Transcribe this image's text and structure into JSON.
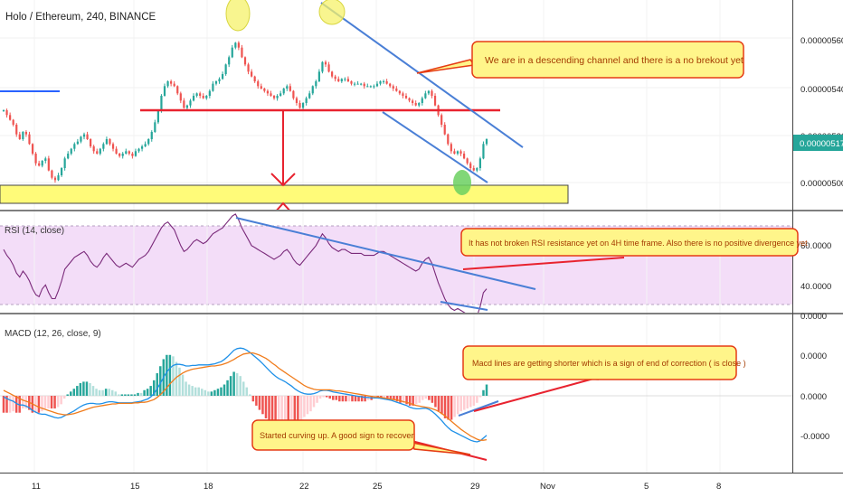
{
  "title": "Holo / Ethereum, 240, BINANCE",
  "colors": {
    "up": "#26a69a",
    "down": "#ef5350",
    "trendline": "#4a7fd6",
    "red_line": "#e8232f",
    "highlight": "#fffb79",
    "rsi": "#7a2a7a",
    "macd": "#1e90e8",
    "signal": "#f07c1c",
    "note_bg": "#fff58a",
    "note_border": "#e53c14"
  },
  "price_panel": {
    "current_price_label": "0.00000517",
    "y_ticks": [
      "0.00000560",
      "0.00000540",
      "0.00000520",
      "0.00000500"
    ],
    "annotation": "We are in a descending channel and there is a no brekout yet"
  },
  "rsi_panel": {
    "label": "RSI (14, close)",
    "y_ticks": [
      "60.0000",
      "40.0000"
    ],
    "annotation": "It has not broken RSI resistance yet on 4H time frame. Also there is no positive divergence yet"
  },
  "macd_panel": {
    "label": "MACD (12, 26, close, 9)",
    "y_ticks": [
      "0.0000",
      "0.0000",
      "0.0000",
      "-0.0000"
    ],
    "annotation_top": "Macd lines are getting shorter which is a sign of end of correction ( is close )",
    "annotation_bottom": "Started curving up. A good sign to recover"
  },
  "x_axis": {
    "ticks": [
      "11",
      "15",
      "18",
      "22",
      "25",
      "29",
      "Nov",
      "5",
      "8"
    ]
  },
  "chart_data": [
    {
      "type": "candlestick",
      "title": "Holo / Ethereum, 240, BINANCE",
      "y_range": [
        4.94e-06,
        5.68e-06
      ],
      "key_level": 5.3e-06,
      "support_zone": [
        4.96e-06,
        5e-06
      ],
      "last_price": 5.17e-06,
      "prices": [
        5.3e-06,
        5.28e-06,
        5.26e-06,
        5.24e-06,
        5.2e-06,
        5.18e-06,
        5.21e-06,
        5.2e-06,
        5.16e-06,
        5.12e-06,
        5.08e-06,
        5.07e-06,
        5.09e-06,
        5.1e-06,
        5.05e-06,
        5.02e-06,
        5.01e-06,
        5.03e-06,
        5.06e-06,
        5.1e-06,
        5.12e-06,
        5.14e-06,
        5.16e-06,
        5.17e-06,
        5.19e-06,
        5.2e-06,
        5.18e-06,
        5.15e-06,
        5.13e-06,
        5.12e-06,
        5.14e-06,
        5.16e-06,
        5.18e-06,
        5.16e-06,
        5.14e-06,
        5.12e-06,
        5.11e-06,
        5.12e-06,
        5.13e-06,
        5.12e-06,
        5.11e-06,
        5.13e-06,
        5.14e-06,
        5.15e-06,
        5.16e-06,
        5.18e-06,
        5.21e-06,
        5.25e-06,
        5.3e-06,
        5.36e-06,
        5.4e-06,
        5.42e-06,
        5.41e-06,
        5.4e-06,
        5.37e-06,
        5.34e-06,
        5.31e-06,
        5.32e-06,
        5.34e-06,
        5.36e-06,
        5.37e-06,
        5.36e-06,
        5.35e-06,
        5.36e-06,
        5.38e-06,
        5.41e-06,
        5.42e-06,
        5.43e-06,
        5.45e-06,
        5.49e-06,
        5.52e-06,
        5.56e-06,
        5.58e-06,
        5.56e-06,
        5.52e-06,
        5.49e-06,
        5.46e-06,
        5.44e-06,
        5.42e-06,
        5.4e-06,
        5.39e-06,
        5.38e-06,
        5.37e-06,
        5.36e-06,
        5.35e-06,
        5.36e-06,
        5.37e-06,
        5.39e-06,
        5.4e-06,
        5.38e-06,
        5.35e-06,
        5.33e-06,
        5.31e-06,
        5.33e-06,
        5.35e-06,
        5.37e-06,
        5.4e-06,
        5.42e-06,
        5.46e-06,
        5.5e-06,
        5.49e-06,
        5.46e-06,
        5.44e-06,
        5.43e-06,
        5.42e-06,
        5.43e-06,
        5.43e-06,
        5.42e-06,
        5.41e-06,
        5.41e-06,
        5.41e-06,
        5.41e-06,
        5.4e-06,
        5.4e-06,
        5.4e-06,
        5.4e-06,
        5.41e-06,
        5.42e-06,
        5.42e-06,
        5.41e-06,
        5.4e-06,
        5.39e-06,
        5.38e-06,
        5.37e-06,
        5.36e-06,
        5.35e-06,
        5.34e-06,
        5.33e-06,
        5.32e-06,
        5.33e-06,
        5.35e-06,
        5.37e-06,
        5.38e-06,
        5.36e-06,
        5.32e-06,
        5.28e-06,
        5.24e-06,
        5.2e-06,
        5.16e-06,
        5.13e-06,
        5.12e-06,
        5.13e-06,
        5.12e-06,
        5.1e-06,
        5.08e-06,
        5.06e-06,
        5.05e-06,
        5.06e-06,
        5.1e-06,
        5.16e-06,
        5.18e-06
      ]
    },
    {
      "type": "line",
      "title": "RSI (14, close)",
      "y_range": [
        20,
        78
      ],
      "reference_lines": [
        70,
        30
      ],
      "values": [
        58,
        55,
        53,
        50,
        46,
        44,
        47,
        45,
        42,
        38,
        35,
        34,
        38,
        40,
        36,
        33,
        33,
        37,
        42,
        48,
        50,
        52,
        54,
        55,
        56,
        57,
        55,
        52,
        50,
        49,
        51,
        54,
        56,
        54,
        52,
        50,
        49,
        50,
        51,
        50,
        49,
        51,
        53,
        54,
        55,
        57,
        60,
        63,
        66,
        69,
        71,
        72,
        70,
        68,
        64,
        60,
        57,
        58,
        60,
        62,
        63,
        62,
        61,
        62,
        64,
        66,
        67,
        68,
        69,
        71,
        73,
        75,
        76,
        73,
        69,
        66,
        63,
        60,
        59,
        58,
        57,
        56,
        55,
        54,
        53,
        54,
        55,
        57,
        58,
        56,
        53,
        51,
        50,
        52,
        54,
        56,
        58,
        60,
        63,
        66,
        64,
        61,
        59,
        58,
        57,
        58,
        58,
        57,
        56,
        56,
        56,
        56,
        55,
        55,
        55,
        55,
        56,
        57,
        57,
        56,
        55,
        54,
        53,
        52,
        51,
        50,
        49,
        48,
        47,
        48,
        51,
        53,
        54,
        51,
        46,
        41,
        37,
        33,
        30,
        28,
        27,
        28,
        27,
        26,
        25,
        24,
        23,
        24,
        29,
        36,
        38
      ]
    },
    {
      "type": "line",
      "title": "MACD (12, 26, close, 9)",
      "y_range": [
        -1.9,
        2.2
      ],
      "series": [
        {
          "name": "MACD",
          "values": [
            -0.02,
            -0.05,
            -0.08,
            -0.1,
            -0.14,
            -0.17,
            -0.17,
            -0.19,
            -0.22,
            -0.27,
            -0.3,
            -0.33,
            -0.34,
            -0.34,
            -0.36,
            -0.38,
            -0.4,
            -0.41,
            -0.4,
            -0.37,
            -0.34,
            -0.31,
            -0.28,
            -0.24,
            -0.2,
            -0.17,
            -0.15,
            -0.14,
            -0.14,
            -0.15,
            -0.15,
            -0.14,
            -0.12,
            -0.11,
            -0.11,
            -0.12,
            -0.13,
            -0.13,
            -0.13,
            -0.13,
            -0.13,
            -0.12,
            -0.11,
            -0.1,
            -0.08,
            -0.06,
            -0.02,
            0.04,
            0.13,
            0.23,
            0.34,
            0.44,
            0.51,
            0.56,
            0.58,
            0.58,
            0.57,
            0.55,
            0.55,
            0.56,
            0.56,
            0.57,
            0.57,
            0.57,
            0.57,
            0.58,
            0.59,
            0.61,
            0.63,
            0.67,
            0.72,
            0.78,
            0.84,
            0.87,
            0.88,
            0.87,
            0.84,
            0.8,
            0.75,
            0.7,
            0.65,
            0.59,
            0.53,
            0.47,
            0.41,
            0.36,
            0.32,
            0.29,
            0.26,
            0.22,
            0.18,
            0.13,
            0.09,
            0.06,
            0.04,
            0.03,
            0.03,
            0.04,
            0.06,
            0.09,
            0.1,
            0.1,
            0.09,
            0.07,
            0.06,
            0.05,
            0.04,
            0.03,
            0.02,
            0.01,
            0.0,
            -0.01,
            -0.02,
            -0.03,
            -0.03,
            -0.04,
            -0.04,
            -0.04,
            -0.05,
            -0.06,
            -0.07,
            -0.08,
            -0.1,
            -0.12,
            -0.14,
            -0.16,
            -0.18,
            -0.21,
            -0.23,
            -0.24,
            -0.24,
            -0.23,
            -0.23,
            -0.25,
            -0.29,
            -0.34,
            -0.4,
            -0.46,
            -0.53,
            -0.59,
            -0.64,
            -0.67,
            -0.7,
            -0.73,
            -0.76,
            -0.79,
            -0.82,
            -0.84,
            -0.85,
            -0.83,
            -0.78,
            -0.73
          ]
        },
        {
          "name": "Signal",
          "values": [
            0.1,
            0.07,
            0.04,
            0.01,
            -0.02,
            -0.05,
            -0.08,
            -0.1,
            -0.12,
            -0.15,
            -0.18,
            -0.21,
            -0.23,
            -0.25,
            -0.27,
            -0.29,
            -0.31,
            -0.33,
            -0.34,
            -0.35,
            -0.35,
            -0.34,
            -0.33,
            -0.31,
            -0.29,
            -0.27,
            -0.25,
            -0.23,
            -0.21,
            -0.2,
            -0.19,
            -0.18,
            -0.17,
            -0.16,
            -0.15,
            -0.15,
            -0.14,
            -0.14,
            -0.14,
            -0.14,
            -0.14,
            -0.13,
            -0.13,
            -0.12,
            -0.12,
            -0.11,
            -0.09,
            -0.07,
            -0.03,
            0.02,
            0.08,
            0.15,
            0.22,
            0.28,
            0.34,
            0.38,
            0.42,
            0.45,
            0.47,
            0.49,
            0.5,
            0.51,
            0.52,
            0.53,
            0.54,
            0.55,
            0.55,
            0.56,
            0.57,
            0.59,
            0.61,
            0.64,
            0.67,
            0.71,
            0.74,
            0.77,
            0.78,
            0.79,
            0.79,
            0.77,
            0.75,
            0.72,
            0.69,
            0.65,
            0.6,
            0.56,
            0.51,
            0.47,
            0.43,
            0.39,
            0.35,
            0.31,
            0.27,
            0.23,
            0.19,
            0.16,
            0.14,
            0.12,
            0.11,
            0.11,
            0.11,
            0.11,
            0.11,
            0.1,
            0.09,
            0.09,
            0.08,
            0.07,
            0.06,
            0.05,
            0.04,
            0.03,
            0.02,
            0.01,
            0.0,
            -0.01,
            -0.02,
            -0.02,
            -0.03,
            -0.04,
            -0.05,
            -0.06,
            -0.07,
            -0.08,
            -0.09,
            -0.11,
            -0.12,
            -0.14,
            -0.16,
            -0.18,
            -0.19,
            -0.2,
            -0.21,
            -0.22,
            -0.24,
            -0.26,
            -0.29,
            -0.33,
            -0.37,
            -0.42,
            -0.47,
            -0.52,
            -0.57,
            -0.62,
            -0.66,
            -0.7,
            -0.74,
            -0.77,
            -0.8,
            -0.82,
            -0.82,
            -0.81
          ]
        }
      ]
    }
  ]
}
